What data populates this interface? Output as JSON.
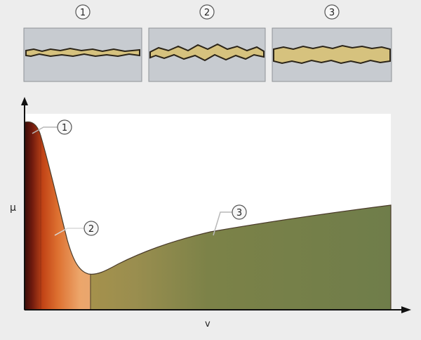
{
  "axes": {
    "y_label": "μ",
    "x_label": "v"
  },
  "insets": [
    {
      "label": "1"
    },
    {
      "label": "2"
    },
    {
      "label": "3"
    }
  ],
  "callouts": [
    {
      "label": "1"
    },
    {
      "label": "2"
    },
    {
      "label": "3"
    }
  ],
  "colors": {
    "page_background": "#ededed",
    "plot_background": "#ffffff",
    "inset_background": "#c7cbd0",
    "lubricant_film": "#d6c27e",
    "boundary_region_dark": "#3a0c08",
    "boundary_region_red": "#c24416",
    "mixed_region_orange": "#eaa56b",
    "hydrodynamic_region_olive": "#6f7d4a",
    "curve_outline": "#4a3b2a"
  }
}
